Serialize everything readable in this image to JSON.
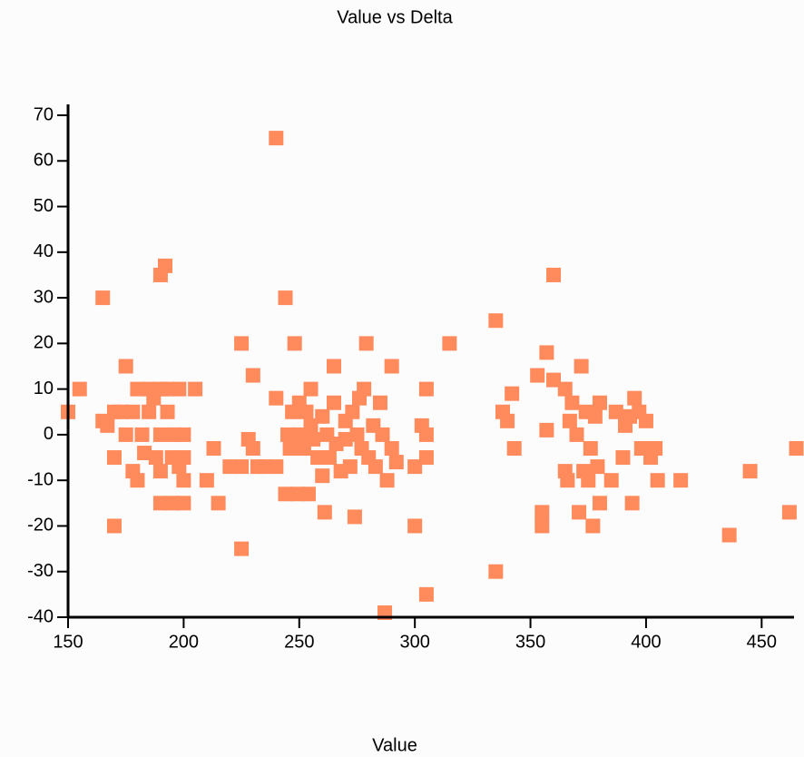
{
  "chart_data": {
    "type": "scatter",
    "title": "Value vs Delta",
    "x_label": "Value",
    "color": "#ff8a5c",
    "xlim": [
      150,
      464
    ],
    "ylim": [
      -40,
      70
    ],
    "xticks": [
      150,
      200,
      250,
      300,
      350,
      400,
      450
    ],
    "yticks": [
      -40,
      -30,
      -20,
      -10,
      0,
      10,
      20,
      30,
      40,
      50,
      60,
      70
    ],
    "x": [
      150,
      155,
      165,
      165,
      167,
      170,
      170,
      170,
      173,
      175,
      175,
      178,
      178,
      180,
      180,
      182,
      183,
      185,
      185,
      187,
      188,
      190,
      190,
      190,
      190,
      190,
      192,
      193,
      193,
      195,
      195,
      196,
      198,
      198,
      200,
      200,
      200,
      200,
      205,
      210,
      213,
      215,
      220,
      225,
      225,
      225,
      228,
      230,
      230,
      232,
      235,
      240,
      240,
      240,
      244,
      244,
      245,
      246,
      247,
      248,
      249,
      250,
      250,
      252,
      253,
      254,
      255,
      255,
      256,
      258,
      260,
      260,
      261,
      262,
      263,
      265,
      265,
      266,
      268,
      270,
      270,
      272,
      273,
      274,
      275,
      276,
      277,
      278,
      279,
      280,
      282,
      283,
      285,
      286,
      287,
      288,
      290,
      290,
      292,
      300,
      300,
      303,
      305,
      305,
      305,
      305,
      315,
      335,
      335,
      338,
      340,
      342,
      343,
      353,
      355,
      355,
      357,
      357,
      360,
      360,
      365,
      365,
      366,
      367,
      368,
      370,
      371,
      372,
      373,
      374,
      375,
      376,
      377,
      378,
      379,
      380,
      380,
      385,
      387,
      390,
      391,
      393,
      394,
      395,
      397,
      398,
      400,
      402,
      404,
      405,
      415,
      436,
      445,
      462,
      465
    ],
    "y": [
      5,
      10,
      30,
      3,
      2,
      -5,
      -20,
      5,
      5,
      15,
      0,
      5,
      -8,
      -10,
      10,
      0,
      -4,
      10,
      5,
      8,
      -5,
      35,
      10,
      0,
      -8,
      -15,
      37,
      5,
      10,
      -5,
      -15,
      0,
      10,
      -7,
      -10,
      0,
      -15,
      -5,
      10,
      -10,
      -3,
      -15,
      -7,
      20,
      -25,
      -7,
      -1,
      13,
      -3,
      -7,
      -7,
      65,
      8,
      -7,
      30,
      -13,
      0,
      -3,
      5,
      20,
      -13,
      0,
      7,
      -3,
      5,
      -13,
      10,
      2,
      -1,
      -5,
      -9,
      4,
      -17,
      0,
      -5,
      15,
      7,
      -2,
      -8,
      3,
      -1,
      -7,
      5,
      -18,
      0,
      8,
      -3,
      10,
      20,
      -5,
      2,
      -7,
      7,
      0,
      -39,
      -10,
      15,
      -3,
      -6,
      -20,
      -7,
      2,
      10,
      -35,
      -5,
      0,
      20,
      25,
      -30,
      5,
      3,
      9,
      -3,
      13,
      -17,
      -20,
      18,
      1,
      35,
      12,
      10,
      -8,
      -10,
      3,
      7,
      0,
      -17,
      15,
      -8,
      5,
      -10,
      -3,
      -20,
      4,
      -7,
      -15,
      7,
      -10,
      5,
      -5,
      2,
      4,
      -15,
      8,
      5,
      -3,
      3,
      -5,
      -3,
      -10,
      -10,
      -22,
      -8,
      -17,
      -3
    ]
  }
}
